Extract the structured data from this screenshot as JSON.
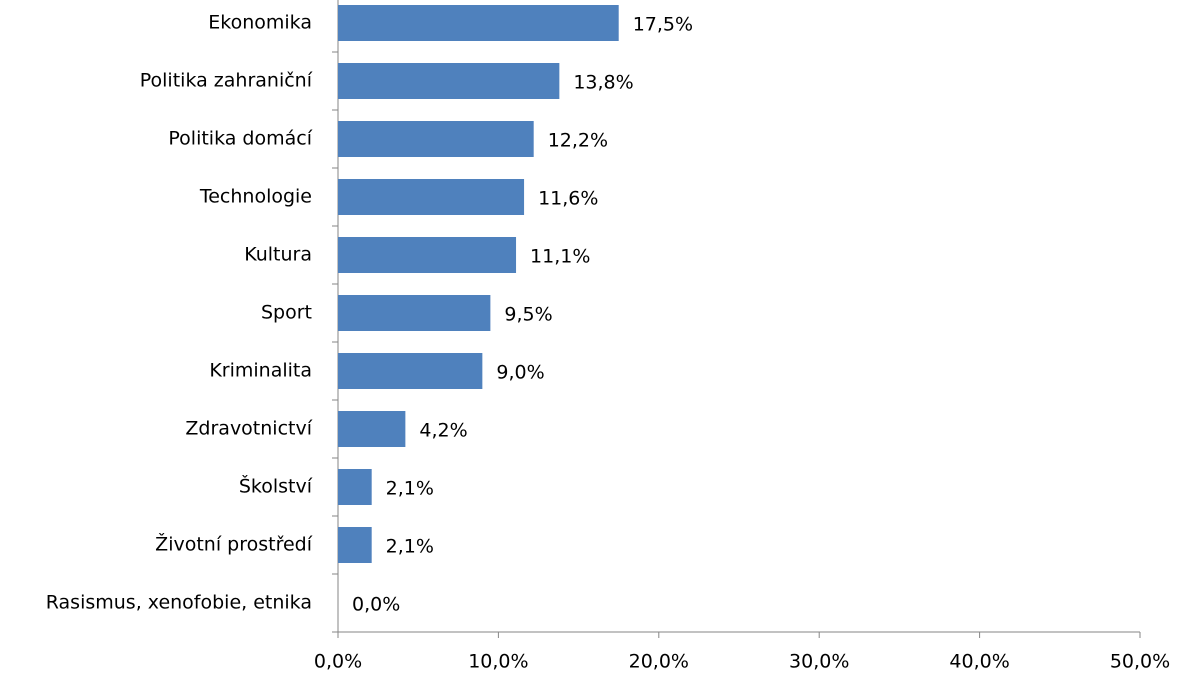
{
  "chart_data": {
    "type": "bar",
    "orientation": "horizontal",
    "categories": [
      "Ekonomika",
      "Politika zahraniční",
      "Politika domácí",
      "Technologie",
      "Kultura",
      "Sport",
      "Kriminalita",
      "Zdravotnictví",
      "Školství",
      "Životní prostředí",
      "Rasismus, xenofobie, etnika"
    ],
    "values": [
      17.5,
      13.8,
      12.2,
      11.6,
      11.1,
      9.5,
      9.0,
      4.2,
      2.1,
      2.1,
      0.0
    ],
    "value_labels": [
      "17,5%",
      "13,8%",
      "12,2%",
      "11,6%",
      "11,1%",
      "9,5%",
      "9,0%",
      "4,2%",
      "2,1%",
      "2,1%",
      "0,0%"
    ],
    "color": "#4f81bd",
    "xlim": [
      0,
      50
    ],
    "xticks": [
      {
        "value": 0,
        "label": "0,0%"
      },
      {
        "value": 10,
        "label": "10,0%"
      },
      {
        "value": 20,
        "label": "20,0%"
      },
      {
        "value": 30,
        "label": "30,0%"
      },
      {
        "value": 40,
        "label": "40,0%"
      },
      {
        "value": 50,
        "label": "50,0%"
      }
    ],
    "grid": false
  }
}
